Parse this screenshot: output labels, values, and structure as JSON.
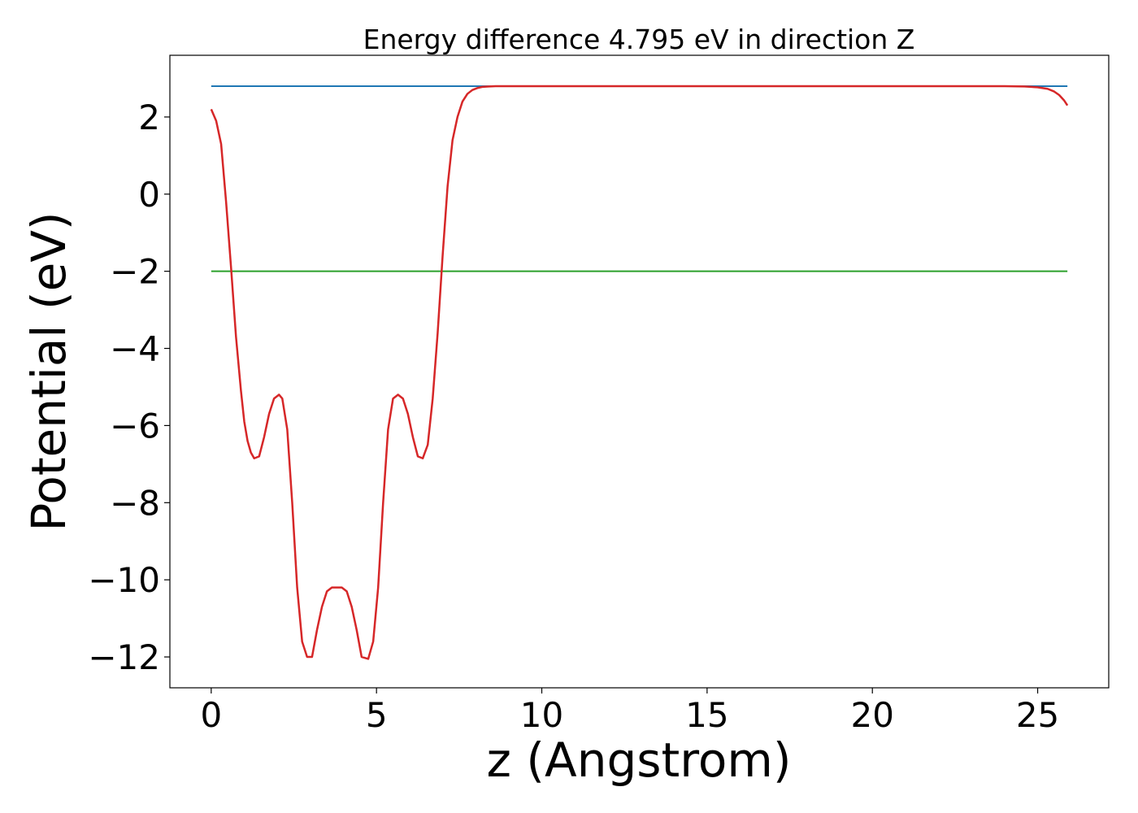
{
  "chart_data": {
    "type": "line",
    "title": "Energy difference 4.795 eV in direction Z",
    "xlabel": "z (Angstrom)",
    "ylabel": "Potential (eV)",
    "xlim": [
      -1.25,
      27.15
    ],
    "ylim": [
      -12.8,
      3.6
    ],
    "xticks": [
      0,
      5,
      10,
      15,
      20,
      25
    ],
    "xtick_labels": [
      "0",
      "5",
      "10",
      "15",
      "20",
      "25"
    ],
    "yticks": [
      2,
      0,
      -2,
      -4,
      -6,
      -8,
      -10,
      -12
    ],
    "ytick_labels": [
      "2",
      "0",
      "−2",
      "−4",
      "−6",
      "−8",
      "−10",
      "−12"
    ],
    "grid": false,
    "series": [
      {
        "color": "#1f77b4",
        "x": [
          0,
          25.9
        ],
        "values": [
          2.8,
          2.8
        ]
      },
      {
        "color": "#2ca02c",
        "x": [
          0,
          25.9
        ],
        "values": [
          -2.0,
          -2.0
        ]
      },
      {
        "color": "#d62728",
        "x": [
          0,
          0.15,
          0.3,
          0.45,
          0.6,
          0.75,
          0.9,
          1.0,
          1.1,
          1.2,
          1.3,
          1.45,
          1.6,
          1.75,
          1.9,
          2.05,
          2.15,
          2.3,
          2.45,
          2.6,
          2.75,
          2.9,
          3.05,
          3.2,
          3.35,
          3.5,
          3.65,
          3.8,
          3.95,
          4.1,
          4.25,
          4.4,
          4.55,
          4.75,
          4.9,
          5.05,
          5.2,
          5.35,
          5.5,
          5.65,
          5.8,
          5.95,
          6.1,
          6.25,
          6.4,
          6.55,
          6.7,
          6.85,
          7.0,
          7.15,
          7.3,
          7.45,
          7.6,
          7.75,
          7.9,
          8.05,
          8.2,
          8.4,
          8.6,
          8.8,
          9.0,
          9.2,
          9.5,
          10.0,
          11.0,
          13.0,
          16.0,
          19.0,
          22.0,
          24.0,
          24.6,
          25.0,
          25.3,
          25.5,
          25.65,
          25.8,
          25.9
        ],
        "values": [
          2.2,
          1.9,
          1.3,
          -0.2,
          -1.9,
          -3.7,
          -5.1,
          -5.9,
          -6.4,
          -6.7,
          -6.85,
          -6.8,
          -6.3,
          -5.7,
          -5.3,
          -5.2,
          -5.3,
          -6.1,
          -8.0,
          -10.2,
          -11.6,
          -12.0,
          -12.0,
          -11.3,
          -10.7,
          -10.3,
          -10.2,
          -10.2,
          -10.2,
          -10.3,
          -10.7,
          -11.3,
          -12.0,
          -12.05,
          -11.6,
          -10.2,
          -8.0,
          -6.1,
          -5.3,
          -5.2,
          -5.3,
          -5.7,
          -6.3,
          -6.8,
          -6.85,
          -6.5,
          -5.3,
          -3.6,
          -1.6,
          0.2,
          1.4,
          2.0,
          2.4,
          2.6,
          2.7,
          2.75,
          2.78,
          2.79,
          2.8,
          2.8,
          2.8,
          2.8,
          2.8,
          2.8,
          2.8,
          2.8,
          2.8,
          2.8,
          2.8,
          2.8,
          2.79,
          2.77,
          2.73,
          2.66,
          2.57,
          2.43,
          2.3
        ]
      }
    ]
  }
}
